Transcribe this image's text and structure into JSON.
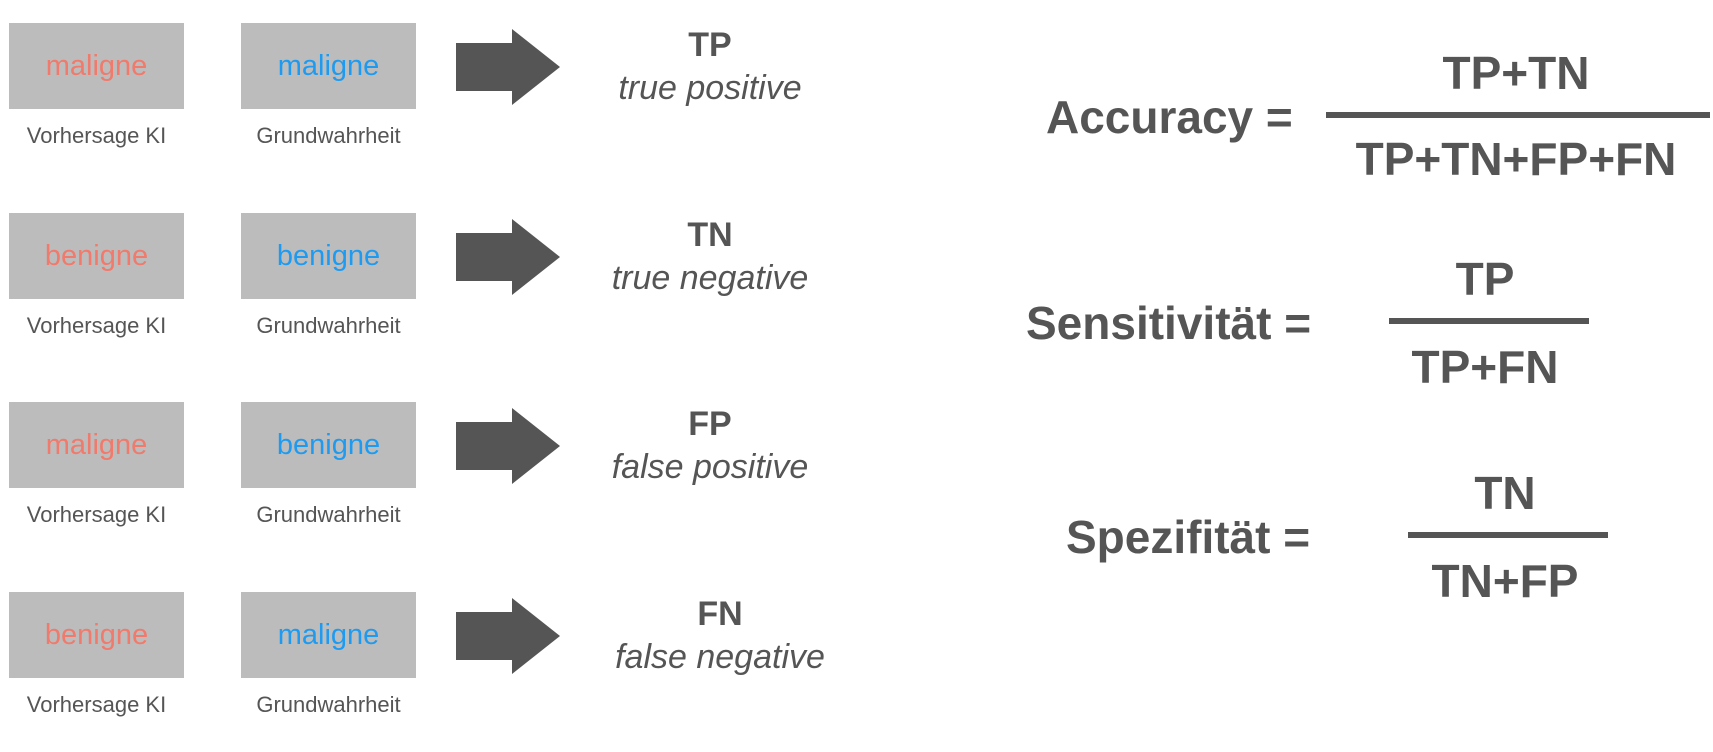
{
  "rows": [
    {
      "prediction": "maligne",
      "ground_truth": "maligne",
      "prediction_caption": "Vorhersage KI",
      "truth_caption": "Grundwahrheit",
      "abbr": "TP",
      "full": "true positive"
    },
    {
      "prediction": "benigne",
      "ground_truth": "benigne",
      "prediction_caption": "Vorhersage KI",
      "truth_caption": "Grundwahrheit",
      "abbr": "TN",
      "full": "true negative"
    },
    {
      "prediction": "maligne",
      "ground_truth": "benigne",
      "prediction_caption": "Vorhersage KI",
      "truth_caption": "Grundwahrheit",
      "abbr": "FP",
      "full": "false positive"
    },
    {
      "prediction": "benigne",
      "ground_truth": "maligne",
      "prediction_caption": "Vorhersage KI",
      "truth_caption": "Grundwahrheit",
      "abbr": "FN",
      "full": "false negative"
    }
  ],
  "formulas": {
    "accuracy": {
      "lhs": "Accuracy =",
      "numerator": "TP+TN",
      "denominator": "TP+TN+FP+FN"
    },
    "sensitivity": {
      "lhs": "Sensitivität =",
      "numerator": "TP",
      "denominator": "TP+FN"
    },
    "specificity": {
      "lhs": "Spezifität =",
      "numerator": "TN",
      "denominator": "TN+FP"
    }
  },
  "colors": {
    "prediction_text": "#f07a6c",
    "truth_text": "#1e9bf0",
    "box_fill": "#bcbcbc",
    "dark_text": "#555555",
    "arrow": "#555555"
  },
  "icons": {
    "arrow": "right-arrow-icon"
  }
}
